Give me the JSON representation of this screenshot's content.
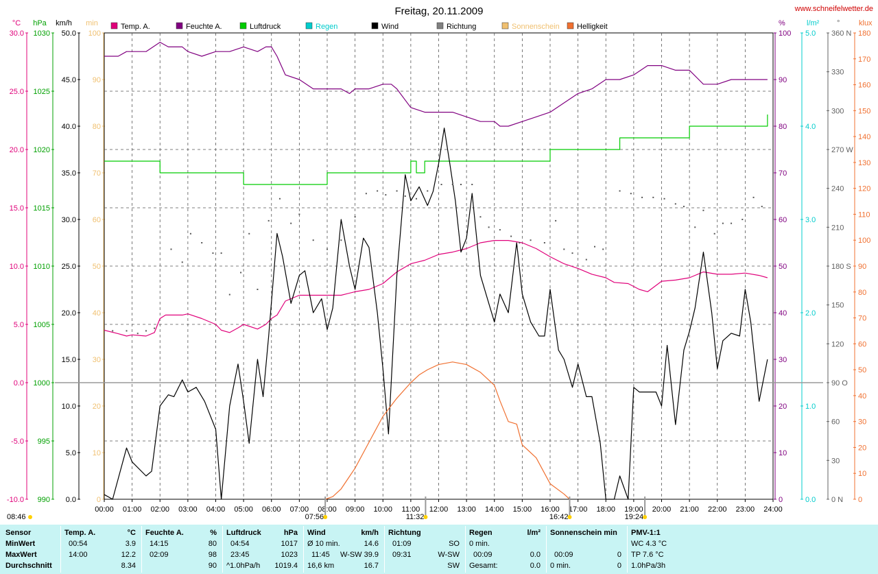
{
  "title": "Freitag, 20.11.2009",
  "website": "www.schneifelwetter.de",
  "colors": {
    "temp": "#e0007a",
    "humidity": "#800080",
    "pressure": "#00cc00",
    "rain": "#00cccc",
    "wind": "#000000",
    "direction": "#808080",
    "sunshine": "#f0c070",
    "brightness": "#f07030",
    "summary_bg": "#c8f4f4"
  },
  "legend": [
    {
      "label": "Temp. A.",
      "color": "#e0007a"
    },
    {
      "label": "Feuchte A.",
      "color": "#800080"
    },
    {
      "label": "Luftdruck",
      "color": "#00cc00"
    },
    {
      "label": "Regen",
      "color": "#00cccc"
    },
    {
      "label": "Wind",
      "color": "#000000"
    },
    {
      "label": "Richtung",
      "color": "#808080"
    },
    {
      "label": "Sonnenschein",
      "color": "#f0c070"
    },
    {
      "label": "Helligkeit",
      "color": "#f07030"
    }
  ],
  "axes": {
    "temp": {
      "unit": "°C",
      "ticks": [
        "30.0",
        "25.0",
        "20.0",
        "15.0",
        "10.0",
        "5.0",
        "0.0",
        "-5.0",
        "-10.0"
      ]
    },
    "pressure": {
      "unit": "hPa",
      "ticks": [
        "1030",
        "1025",
        "1020",
        "1015",
        "1010",
        "1005",
        "1000",
        "995",
        "990"
      ]
    },
    "wind": {
      "unit": "km/h",
      "ticks": [
        "50.0",
        "45.0",
        "40.0",
        "35.0",
        "30.0",
        "25.0",
        "20.0",
        "15.0",
        "10.0",
        "5.0",
        "0.0"
      ]
    },
    "sunshine": {
      "unit": "min",
      "ticks": [
        "100",
        "90",
        "80",
        "70",
        "60",
        "50",
        "40",
        "30",
        "20",
        "10",
        "0"
      ]
    },
    "humidity": {
      "unit": "%",
      "ticks": [
        "100",
        "90",
        "80",
        "70",
        "60",
        "50",
        "40",
        "30",
        "20",
        "10",
        "0"
      ]
    },
    "rain": {
      "unit": "l/m²",
      "ticks": [
        "5.0",
        "4.0",
        "3.0",
        "2.0",
        "1.0",
        "0.0"
      ]
    },
    "direction": {
      "unit": "°",
      "ticks": [
        "360 N",
        "330",
        "300",
        "270 W",
        "240",
        "210",
        "180 S",
        "150",
        "120",
        "90 O",
        "60",
        "30",
        "0 N"
      ]
    },
    "brightness": {
      "unit": "klux",
      "ticks": [
        "180",
        "170",
        "160",
        "150",
        "140",
        "130",
        "120",
        "110",
        "100",
        "90",
        "80",
        "70",
        "60",
        "50",
        "40",
        "30",
        "20",
        "10",
        "0"
      ]
    },
    "time": {
      "ticks": [
        "00:00",
        "01:00",
        "02:00",
        "03:00",
        "04:00",
        "05:00",
        "06:00",
        "07:00",
        "08:00",
        "09:00",
        "10:00",
        "11:00",
        "12:00",
        "13:00",
        "14:00",
        "15:00",
        "16:00",
        "17:00",
        "18:00",
        "19:00",
        "20:00",
        "21:00",
        "22:00",
        "23:00",
        "24:00"
      ]
    }
  },
  "markers": [
    {
      "label": "08:46",
      "time": 8.77,
      "row": "lower"
    },
    {
      "label": "07:56",
      "time": 7.93,
      "row": "upper"
    },
    {
      "label": "11:32",
      "time": 11.53,
      "row": "upper"
    },
    {
      "label": "16:42",
      "time": 16.7,
      "row": "upper"
    },
    {
      "label": "19:24",
      "time": 19.4,
      "row": "upper"
    }
  ],
  "chart_data": {
    "type": "line",
    "title": "Freitag, 20.11.2009",
    "xlim": [
      0,
      24
    ],
    "series": [
      {
        "name": "Temp. A.",
        "axis": "temp",
        "ylim": [
          -10,
          30
        ],
        "x": [
          0,
          0.5,
          0.8,
          1,
          1.5,
          1.8,
          2,
          2.2,
          2.8,
          3,
          3.5,
          4,
          4.2,
          4.5,
          4.8,
          5,
          5.5,
          5.8,
          6,
          6.2,
          6.5,
          7,
          7.5,
          8,
          8.5,
          9,
          9.5,
          10,
          10.5,
          11,
          11.5,
          12,
          12.5,
          13,
          13.5,
          14,
          14.5,
          15,
          15.5,
          16,
          16.5,
          17,
          17.5,
          18,
          18.3,
          18.8,
          19.2,
          19.5,
          20,
          20.5,
          21,
          21.5,
          22,
          22.5,
          23,
          23.5,
          23.8
        ],
        "values": [
          4.5,
          4.2,
          4.0,
          4.1,
          4.0,
          4.3,
          5.5,
          5.8,
          5.8,
          5.9,
          5.5,
          5.0,
          4.5,
          4.3,
          4.7,
          5.0,
          4.6,
          5.0,
          5.5,
          5.8,
          7.0,
          7.5,
          7.5,
          7.5,
          7.5,
          7.8,
          8.0,
          8.5,
          9.5,
          10.2,
          10.5,
          11.0,
          11.2,
          11.5,
          12.0,
          12.2,
          12.2,
          12.0,
          11.5,
          10.8,
          10.2,
          9.8,
          9.3,
          9.0,
          8.6,
          8.5,
          8.0,
          7.8,
          8.7,
          8.8,
          9.0,
          9.5,
          9.3,
          9.3,
          9.4,
          9.2,
          9.0
        ]
      },
      {
        "name": "Feuchte A.",
        "axis": "humidity",
        "ylim": [
          0,
          100
        ],
        "x": [
          0,
          0.5,
          0.8,
          1.5,
          2,
          2.3,
          2.8,
          3,
          3.5,
          4,
          4.5,
          5,
          5.5,
          5.8,
          6,
          6.2,
          6.5,
          7,
          7.5,
          8,
          8.5,
          8.8,
          9,
          9.5,
          10,
          10.3,
          10.5,
          11,
          11.5,
          12,
          12.5,
          13,
          13.5,
          14,
          14.2,
          14.5,
          15,
          15.5,
          16,
          16.5,
          17,
          17.5,
          18,
          18.5,
          19,
          19.5,
          20,
          20.5,
          21,
          21.5,
          22,
          22.5,
          23,
          23.5,
          23.8
        ],
        "values": [
          95,
          95,
          96,
          96,
          98,
          97,
          97,
          96,
          95,
          96,
          96,
          97,
          96,
          97,
          97,
          95,
          91,
          90,
          88,
          88,
          88,
          87,
          88,
          88,
          89,
          89,
          88,
          84,
          83,
          83,
          83,
          82,
          81,
          81,
          80,
          80,
          81,
          82,
          83,
          85,
          87,
          88,
          90,
          90,
          91,
          93,
          93,
          92,
          92,
          89,
          89,
          90,
          90,
          90,
          90
        ]
      },
      {
        "name": "Luftdruck",
        "axis": "pressure",
        "ylim": [
          990,
          1030
        ],
        "x": [
          0,
          1,
          1.8,
          2,
          3,
          4,
          4.8,
          5,
          6,
          7,
          7.5,
          8,
          8.5,
          9,
          10,
          10.8,
          11,
          11.2,
          11.5,
          12,
          13,
          14,
          15,
          15.5,
          15.8,
          16,
          16.5,
          17,
          17.5,
          18,
          18.5,
          19,
          19.5,
          20,
          20.5,
          21,
          21.5,
          22,
          22.5,
          23,
          23.5,
          23.8
        ],
        "values": [
          1019,
          1019,
          1019,
          1018,
          1018,
          1018,
          1018,
          1017,
          1017,
          1017,
          1017,
          1018,
          1018,
          1018,
          1018,
          1018,
          1019,
          1018,
          1019,
          1019,
          1019,
          1019,
          1019,
          1019,
          1019,
          1020,
          1020,
          1020,
          1020,
          1020,
          1021,
          1021,
          1021,
          1021,
          1021,
          1022,
          1022,
          1022,
          1022,
          1022,
          1022,
          1023
        ]
      },
      {
        "name": "Wind",
        "axis": "wind",
        "ylim": [
          0,
          50
        ],
        "x": [
          0,
          0.3,
          0.8,
          1,
          1.5,
          1.7,
          2,
          2.3,
          2.5,
          2.8,
          3,
          3.3,
          3.6,
          4,
          4.2,
          4.5,
          4.8,
          5,
          5.2,
          5.5,
          5.7,
          5.9,
          6.2,
          6.4,
          6.7,
          7,
          7.2,
          7.5,
          7.8,
          8,
          8.2,
          8.5,
          8.8,
          9,
          9.3,
          9.5,
          9.8,
          10,
          10.2,
          10.5,
          10.8,
          11,
          11.3,
          11.6,
          11.8,
          12,
          12.2,
          12.4,
          12.6,
          12.8,
          13,
          13.2,
          13.5,
          13.8,
          14,
          14.2,
          14.5,
          14.8,
          15,
          15.3,
          15.6,
          15.8,
          16,
          16.3,
          16.5,
          16.8,
          17,
          17.3,
          17.5,
          17.8,
          18,
          18.3,
          18.5,
          18.8,
          19,
          19.2,
          19.5,
          19.8,
          20,
          20.2,
          20.5,
          20.8,
          21,
          21.2,
          21.5,
          21.8,
          22,
          22.2,
          22.5,
          22.8,
          23,
          23.2,
          23.5,
          23.8
        ],
        "values": [
          0.5,
          0,
          5.5,
          4,
          2.5,
          3,
          10,
          11.2,
          11,
          12.8,
          11.5,
          12,
          10.5,
          7.5,
          0,
          10,
          14.5,
          10.5,
          6,
          15,
          11,
          17.5,
          28.5,
          26,
          21,
          24,
          24.5,
          20,
          21.5,
          18.2,
          20.5,
          30,
          25,
          22.5,
          28,
          27,
          20,
          14,
          7,
          24,
          34.8,
          32,
          33.5,
          31.5,
          33,
          36,
          39.8,
          36,
          32,
          26.5,
          28,
          32.8,
          24,
          21,
          19,
          22,
          20,
          27.5,
          22,
          19,
          17.5,
          17.5,
          22.5,
          16,
          15,
          12,
          14.5,
          11,
          11,
          6,
          0,
          0,
          2.5,
          0,
          12,
          11.5,
          11.5,
          11.5,
          10,
          16.5,
          8,
          16,
          18,
          20.5,
          26.5,
          20,
          14,
          17,
          17.8,
          17.5,
          22.5,
          19,
          10.5,
          15
        ]
      },
      {
        "name": "Richtung",
        "axis": "direction",
        "ylim": [
          0,
          360
        ],
        "x": [
          0.3,
          0.8,
          1.2,
          1.5,
          1.8,
          2.4,
          2.8,
          3.1,
          3.5,
          3.9,
          4.2,
          4.5,
          4.9,
          5.2,
          5.5,
          5.9,
          6.3,
          6.7,
          7,
          7.5,
          8,
          8.5,
          9,
          9.4,
          9.8,
          10.1,
          10.5,
          10.8,
          11.2,
          11.6,
          12.1,
          12.5,
          12.8,
          13.2,
          13.5,
          13.8,
          14.2,
          14.6,
          14.9,
          15.3,
          15.8,
          16.2,
          16.5,
          16.8,
          17.3,
          17.6,
          17.9,
          18.5,
          18.9,
          19.3,
          19.7,
          20.1,
          20.5,
          20.8,
          21.2,
          21.5,
          21.9,
          22.2,
          22.5,
          22.9,
          23.3,
          23.6
        ],
        "values": [
          130,
          130,
          128,
          130,
          132,
          193,
          183,
          205,
          198,
          190,
          190,
          158,
          175,
          205,
          162,
          215,
          232,
          213,
          220,
          200,
          193,
          200,
          218,
          236,
          238,
          235,
          238,
          234,
          232,
          238,
          243,
          243,
          243,
          243,
          218,
          210,
          208,
          203,
          198,
          200,
          198,
          215,
          193,
          190,
          185,
          195,
          193,
          238,
          236,
          233,
          233,
          232,
          228,
          226,
          210,
          223,
          205,
          213,
          213,
          216,
          233,
          226
        ]
      },
      {
        "name": "Helligkeit",
        "axis": "brightness",
        "ylim": [
          0,
          180
        ],
        "x": [
          7.93,
          8.2,
          8.5,
          9,
          9.5,
          10,
          10.5,
          11,
          11.3,
          11.6,
          12,
          12.5,
          13,
          13.5,
          14,
          14.2,
          14.5,
          14.8,
          15,
          15.5,
          16,
          16.5,
          16.7
        ],
        "values": [
          0,
          1,
          4,
          12,
          22,
          32,
          39,
          45,
          48,
          50,
          52,
          53,
          52,
          49,
          44,
          38,
          30,
          29,
          21,
          16,
          6,
          2,
          0
        ]
      }
    ]
  },
  "summary": {
    "sensor": {
      "header": "Sensor",
      "rows": [
        "MinWert",
        "MaxWert",
        "Durchschnitt"
      ]
    },
    "temp": {
      "header": "Temp. A.",
      "unit": "°C",
      "min_time": "00:54",
      "min": "3.9",
      "max_time": "14:00",
      "max": "12.2",
      "avg": "8.34"
    },
    "humidity": {
      "header": "Feuchte A.",
      "unit": "%",
      "min_time": "14:15",
      "min": "80",
      "max_time": "02:09",
      "max": "98",
      "avg": "90"
    },
    "pressure": {
      "header": "Luftdruck",
      "unit": "hPa",
      "min_time": "04:54",
      "min": "1017",
      "max_time": "23:45",
      "max": "1023",
      "trend": "^1.0hPa/h",
      "avg": "1019.4"
    },
    "wind": {
      "header": "Wind",
      "unit": "km/h",
      "r1_label": "Ø 10 min.",
      "r1_value": "14.6",
      "r2_time": "11:45",
      "r2_dir": "W-SW",
      "r2_value": "39.9",
      "r3_label": "16,6 km",
      "r3_value": "16.7"
    },
    "direction": {
      "header": "Richtung",
      "r1_time": "01:09",
      "r1_value": "SO",
      "r2_time": "09:31",
      "r2_value": "W-SW",
      "r3_value": "SW"
    },
    "rain": {
      "header": "Regen",
      "unit": "l/m²",
      "r1_label": "0 min.",
      "r2_time": "00:09",
      "r2_value": "0.0",
      "r3_label": "Gesamt:",
      "r3_value": "0.0"
    },
    "sunshine": {
      "header": "Sonnenschein min",
      "r2_time": "00:09",
      "r2_value": "0",
      "r3_label": "0 min.",
      "r3_value": "0"
    },
    "pmv": {
      "header": "PMV-1:1",
      "r1": "WC 4.3 °C",
      "r2": "TP 7.6 °C",
      "r3": "1.0hPa/3h"
    }
  }
}
